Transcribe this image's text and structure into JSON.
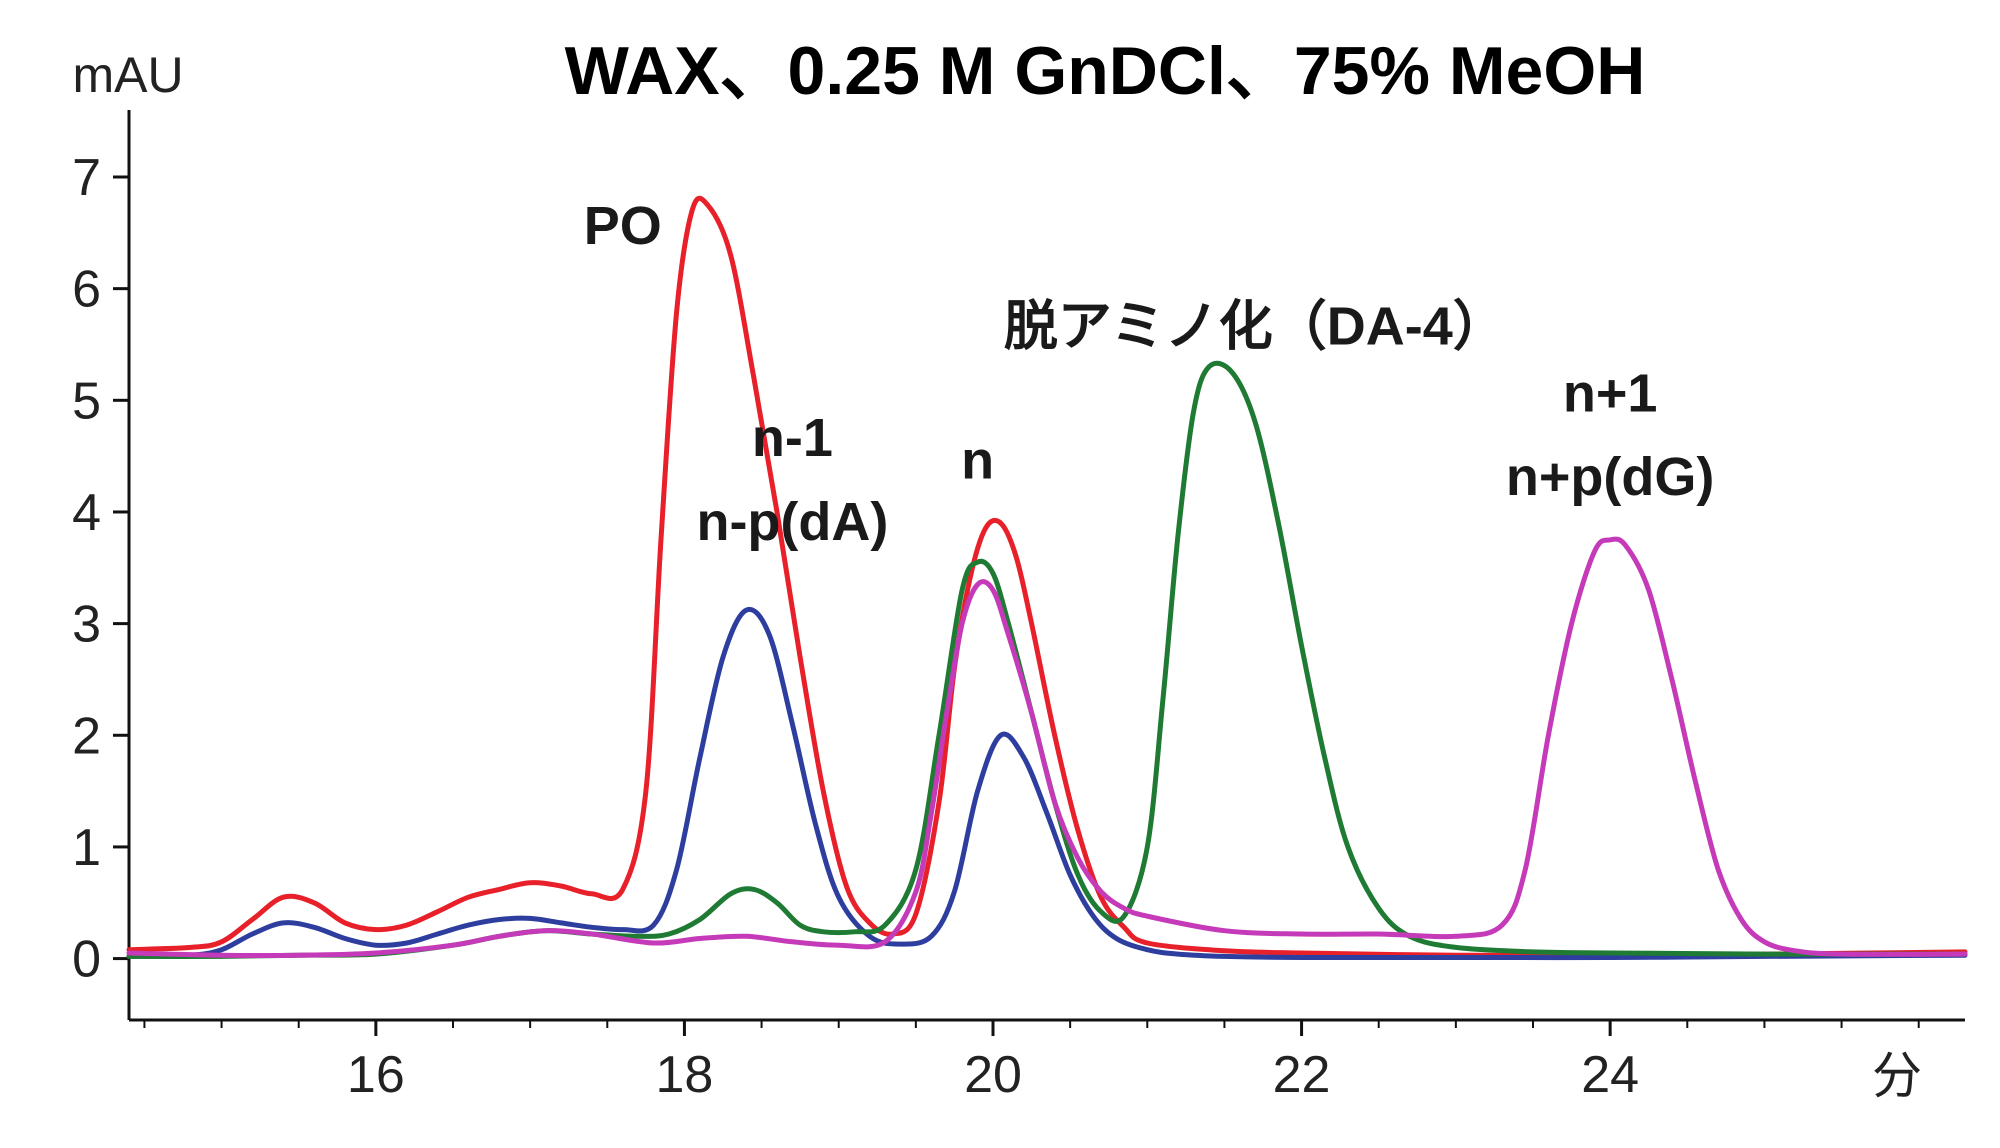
{
  "chart_data": {
    "type": "line",
    "title": "WAX、0.25 M GnDCl、75% MeOH",
    "ylabel": "mAU",
    "xlabel": "分",
    "xlim": [
      14.4,
      26.3
    ],
    "ylim": [
      -0.55,
      7.6
    ],
    "xticks": [
      16,
      18,
      20,
      22,
      24
    ],
    "yticks": [
      0,
      1,
      2,
      3,
      4,
      5,
      6,
      7
    ],
    "grid": false,
    "annotations": [
      {
        "id": "po",
        "text": "PO",
        "x": 17.6,
        "y": 6.4
      },
      {
        "id": "deam",
        "text": "脱アミノ化（DA-4）",
        "x": 21.7,
        "y": 5.5
      },
      {
        "id": "nm1a",
        "text": "n-1",
        "x": 18.7,
        "y": 4.5
      },
      {
        "id": "nm1b",
        "text": "n-p(dA)",
        "x": 18.7,
        "y": 3.75
      },
      {
        "id": "n",
        "text": "n",
        "x": 19.9,
        "y": 4.3
      },
      {
        "id": "np1a",
        "text": "n+1",
        "x": 24.0,
        "y": 4.9
      },
      {
        "id": "np1b",
        "text": "n+p(dG)",
        "x": 24.0,
        "y": 4.15
      }
    ],
    "series": [
      {
        "name": "red",
        "color": "#e8202a",
        "x": [
          14.4,
          14.8,
          15.0,
          15.2,
          15.4,
          15.6,
          15.8,
          16.0,
          16.2,
          16.4,
          16.6,
          16.8,
          17.0,
          17.2,
          17.4,
          17.6,
          17.75,
          17.85,
          17.95,
          18.05,
          18.15,
          18.3,
          18.45,
          18.6,
          18.75,
          18.9,
          19.05,
          19.2,
          19.35,
          19.5,
          19.65,
          19.75,
          19.85,
          19.95,
          20.05,
          20.15,
          20.25,
          20.4,
          20.55,
          20.7,
          20.85,
          21.0,
          21.5,
          22.0,
          23.0,
          24.0,
          25.0,
          26.3
        ],
        "y": [
          0.08,
          0.1,
          0.15,
          0.35,
          0.55,
          0.5,
          0.32,
          0.26,
          0.3,
          0.42,
          0.55,
          0.62,
          0.68,
          0.65,
          0.58,
          0.62,
          1.5,
          3.8,
          5.8,
          6.7,
          6.75,
          6.3,
          5.2,
          4.0,
          2.7,
          1.5,
          0.65,
          0.32,
          0.22,
          0.4,
          1.4,
          2.6,
          3.4,
          3.85,
          3.9,
          3.6,
          3.0,
          2.0,
          1.15,
          0.55,
          0.28,
          0.14,
          0.07,
          0.05,
          0.03,
          0.03,
          0.04,
          0.06
        ]
      },
      {
        "name": "blue",
        "color": "#2e3e9e",
        "x": [
          14.4,
          14.8,
          15.0,
          15.2,
          15.4,
          15.6,
          15.8,
          16.0,
          16.2,
          16.4,
          16.6,
          16.8,
          17.0,
          17.2,
          17.4,
          17.6,
          17.8,
          17.95,
          18.1,
          18.25,
          18.4,
          18.55,
          18.7,
          18.85,
          19.0,
          19.2,
          19.4,
          19.6,
          19.75,
          19.9,
          20.05,
          20.2,
          20.35,
          20.5,
          20.65,
          20.8,
          21.0,
          21.2,
          21.5,
          22.0,
          23.0,
          24.0,
          25.0,
          26.3
        ],
        "y": [
          0.02,
          0.03,
          0.08,
          0.22,
          0.32,
          0.28,
          0.18,
          0.12,
          0.14,
          0.22,
          0.3,
          0.35,
          0.36,
          0.32,
          0.28,
          0.26,
          0.3,
          0.8,
          1.8,
          2.7,
          3.12,
          2.9,
          2.1,
          1.2,
          0.55,
          0.2,
          0.13,
          0.2,
          0.6,
          1.5,
          2.0,
          1.8,
          1.3,
          0.75,
          0.38,
          0.18,
          0.08,
          0.04,
          0.02,
          0.01,
          0.01,
          0.01,
          0.02,
          0.03
        ]
      },
      {
        "name": "green",
        "color": "#1f7a33",
        "x": [
          14.4,
          15.0,
          15.5,
          16.0,
          16.5,
          16.8,
          17.1,
          17.4,
          17.7,
          17.9,
          18.1,
          18.3,
          18.45,
          18.6,
          18.75,
          18.9,
          19.1,
          19.3,
          19.5,
          19.65,
          19.8,
          19.9,
          20.0,
          20.1,
          20.25,
          20.4,
          20.55,
          20.7,
          20.85,
          21.0,
          21.1,
          21.2,
          21.3,
          21.4,
          21.55,
          21.7,
          21.85,
          22.0,
          22.15,
          22.3,
          22.5,
          22.7,
          23.0,
          23.5,
          24.0,
          25.0,
          26.3
        ],
        "y": [
          0.02,
          0.02,
          0.03,
          0.04,
          0.12,
          0.2,
          0.25,
          0.22,
          0.2,
          0.22,
          0.35,
          0.58,
          0.62,
          0.5,
          0.3,
          0.24,
          0.24,
          0.3,
          0.8,
          2.0,
          3.3,
          3.55,
          3.45,
          3.0,
          2.2,
          1.4,
          0.75,
          0.42,
          0.38,
          1.0,
          2.3,
          3.8,
          4.9,
          5.3,
          5.25,
          4.8,
          3.9,
          2.8,
          1.8,
          1.0,
          0.45,
          0.2,
          0.1,
          0.06,
          0.05,
          0.04,
          0.04
        ]
      },
      {
        "name": "magenta",
        "color": "#c43ab8",
        "x": [
          14.4,
          15.0,
          15.5,
          16.0,
          16.5,
          16.8,
          17.1,
          17.4,
          17.8,
          18.1,
          18.4,
          18.7,
          19.0,
          19.3,
          19.5,
          19.6,
          19.7,
          19.8,
          19.9,
          20.0,
          20.1,
          20.25,
          20.4,
          20.55,
          20.7,
          20.85,
          21.0,
          21.5,
          22.0,
          22.5,
          23.0,
          23.3,
          23.45,
          23.6,
          23.75,
          23.9,
          24.0,
          24.1,
          24.25,
          24.4,
          24.55,
          24.7,
          24.85,
          25.0,
          25.2,
          25.5,
          26.3
        ],
        "y": [
          0.05,
          0.03,
          0.03,
          0.05,
          0.12,
          0.2,
          0.25,
          0.22,
          0.14,
          0.18,
          0.2,
          0.15,
          0.12,
          0.15,
          0.6,
          1.3,
          2.2,
          3.0,
          3.35,
          3.3,
          2.9,
          2.2,
          1.4,
          0.9,
          0.6,
          0.45,
          0.38,
          0.25,
          0.22,
          0.22,
          0.2,
          0.3,
          0.8,
          2.0,
          3.0,
          3.65,
          3.75,
          3.7,
          3.3,
          2.5,
          1.6,
          0.8,
          0.35,
          0.15,
          0.07,
          0.04,
          0.04
        ]
      }
    ]
  }
}
